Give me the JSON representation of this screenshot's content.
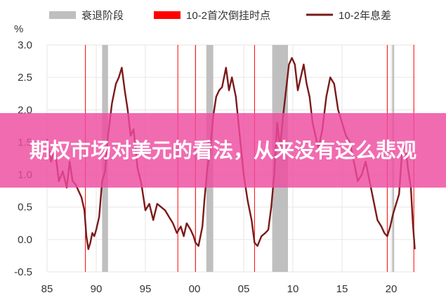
{
  "headline": "期权市场对美元的看法，从来没有这么悲观",
  "colors": {
    "recession": "#bfbfbf",
    "flip_line": "#ff0000",
    "spread": "#7b1a1a",
    "banner": "#ee4aa0",
    "grid": "#e6e6e6"
  },
  "chart_data": {
    "type": "line",
    "ylabel": "%",
    "xlim": [
      1985,
      2022.5
    ],
    "ylim": [
      -0.5,
      3.0
    ],
    "x_ticks": [
      {
        "value": 1985,
        "label": "85"
      },
      {
        "value": 1990,
        "label": "90"
      },
      {
        "value": 1995,
        "label": "95"
      },
      {
        "value": 2000,
        "label": "00"
      },
      {
        "value": 2005,
        "label": "05"
      },
      {
        "value": 2010,
        "label": "10"
      },
      {
        "value": 2015,
        "label": "15"
      },
      {
        "value": 2020,
        "label": "20"
      }
    ],
    "y_ticks": [
      {
        "value": 3.0,
        "label": "3.0"
      },
      {
        "value": 2.5,
        "label": "2.5"
      },
      {
        "value": 2.0,
        "label": "2.0"
      },
      {
        "value": 1.5,
        "label": "1.5"
      },
      {
        "value": 1.0,
        "label": "1.0"
      },
      {
        "value": 0.5,
        "label": "0.5"
      },
      {
        "value": 0.0,
        "label": "0.0"
      },
      {
        "value": -0.5,
        "label": "-0.5"
      }
    ],
    "legend": {
      "placement": "top",
      "entries": [
        {
          "name": "衰退阶段",
          "kind": "band"
        },
        {
          "name": "10-2首次倒挂时点",
          "kind": "flip"
        },
        {
          "name": "10-2年息差",
          "kind": "line"
        }
      ]
    },
    "recessions": [
      [
        1990.6,
        1991.2
      ],
      [
        2001.2,
        2001.9
      ],
      [
        2007.9,
        2009.5
      ],
      [
        2020.1,
        2020.3
      ]
    ],
    "first_inversions": [
      1988.9,
      1998.3,
      2000.1,
      2006.1,
      2019.6,
      2022.3
    ],
    "series": [
      {
        "name": "10-2年息差",
        "x": [
          1985.0,
          1985.4,
          1985.8,
          1986.2,
          1986.6,
          1987.0,
          1987.3,
          1987.6,
          1987.9,
          1988.2,
          1988.5,
          1988.8,
          1989.0,
          1989.2,
          1989.4,
          1989.6,
          1989.8,
          1990.0,
          1990.3,
          1990.6,
          1990.9,
          1991.2,
          1991.6,
          1992.0,
          1992.3,
          1992.6,
          1992.9,
          1993.2,
          1993.5,
          1993.8,
          1994.2,
          1994.6,
          1995.0,
          1995.4,
          1995.8,
          1996.2,
          1996.6,
          1997.0,
          1997.4,
          1997.8,
          1998.2,
          1998.6,
          1998.9,
          1999.2,
          1999.6,
          1999.9,
          2000.1,
          2000.4,
          2000.8,
          2001.0,
          2001.3,
          2001.6,
          2001.9,
          2002.2,
          2002.5,
          2002.8,
          2003.2,
          2003.5,
          2003.8,
          2004.2,
          2004.6,
          2005.0,
          2005.4,
          2005.8,
          2006.1,
          2006.4,
          2006.8,
          2007.2,
          2007.5,
          2007.8,
          2008.1,
          2008.4,
          2008.7,
          2009.0,
          2009.3,
          2009.6,
          2009.9,
          2010.2,
          2010.5,
          2010.8,
          2011.1,
          2011.4,
          2011.7,
          2012.0,
          2012.3,
          2012.6,
          2013.0,
          2013.4,
          2013.8,
          2014.2,
          2014.6,
          2015.0,
          2015.4,
          2015.8,
          2016.2,
          2016.6,
          2017.0,
          2017.4,
          2017.8,
          2018.2,
          2018.6,
          2019.0,
          2019.3,
          2019.6,
          2019.9,
          2020.2,
          2020.5,
          2020.8,
          2021.1,
          2021.4,
          2021.7,
          2022.0,
          2022.2,
          2022.4
        ],
        "values": [
          1.55,
          1.2,
          1.4,
          0.9,
          1.05,
          0.8,
          1.2,
          0.9,
          0.85,
          0.75,
          0.65,
          0.45,
          0.05,
          -0.15,
          -0.05,
          0.1,
          0.05,
          0.15,
          0.35,
          0.9,
          1.05,
          1.6,
          2.1,
          2.4,
          2.5,
          2.65,
          2.3,
          2.0,
          1.6,
          1.7,
          1.1,
          0.85,
          0.45,
          0.55,
          0.3,
          0.55,
          0.5,
          0.45,
          0.35,
          0.25,
          0.1,
          0.2,
          0.05,
          0.25,
          0.15,
          0.05,
          -0.05,
          -0.1,
          0.2,
          0.6,
          1.1,
          1.4,
          1.9,
          2.2,
          2.3,
          2.35,
          2.65,
          2.3,
          2.5,
          2.2,
          1.6,
          1.0,
          0.6,
          0.3,
          -0.05,
          -0.1,
          0.05,
          0.1,
          0.15,
          0.5,
          1.0,
          1.8,
          1.4,
          1.9,
          2.3,
          2.7,
          2.8,
          2.7,
          2.3,
          2.5,
          2.7,
          2.4,
          2.2,
          1.8,
          1.6,
          1.4,
          1.7,
          2.2,
          2.5,
          2.4,
          2.0,
          1.8,
          1.6,
          1.5,
          1.2,
          0.9,
          1.0,
          1.2,
          0.9,
          0.6,
          0.3,
          0.2,
          0.1,
          0.05,
          0.2,
          0.4,
          0.55,
          0.7,
          1.35,
          1.5,
          1.1,
          0.8,
          0.25,
          -0.15
        ]
      }
    ]
  }
}
